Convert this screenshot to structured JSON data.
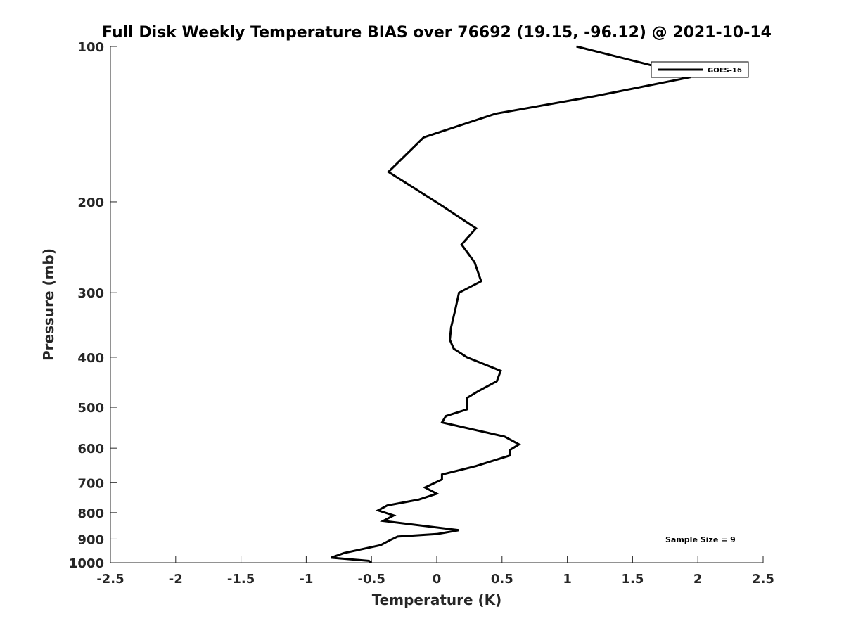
{
  "chart_data": {
    "type": "line",
    "title": "Full Disk Weekly Temperature BIAS over 76692 (19.15, -96.12) @ 2021-10-14",
    "xlabel": "Temperature (K)",
    "ylabel": "Pressure (mb)",
    "xlim": [
      -2.5,
      2.5
    ],
    "ylim": [
      1000,
      100
    ],
    "y_scale": "log",
    "y_reversed": true,
    "grid": false,
    "legend_position": "top-right",
    "x_ticks": [
      "-2.5",
      "-2",
      "-1.5",
      "-1",
      "-0.5",
      "0",
      "0.5",
      "1",
      "1.5",
      "2",
      "2.5"
    ],
    "y_ticks": [
      "100",
      "200",
      "300",
      "400",
      "500",
      "600",
      "700",
      "800",
      "900",
      "1000"
    ],
    "annotation": "Sample Size = 9",
    "series": [
      {
        "name": "GOES-16",
        "color": "#000000",
        "points": [
          [
            1.07,
            100
          ],
          [
            1.72,
            110
          ],
          [
            1.92,
            115
          ],
          [
            1.2,
            125
          ],
          [
            0.45,
            135
          ],
          [
            -0.1,
            150
          ],
          [
            -0.37,
            175
          ],
          [
            0.02,
            202
          ],
          [
            0.3,
            225
          ],
          [
            0.19,
            242
          ],
          [
            0.29,
            262
          ],
          [
            0.34,
            285
          ],
          [
            0.17,
            300
          ],
          [
            0.14,
            325
          ],
          [
            0.11,
            350
          ],
          [
            0.1,
            370
          ],
          [
            0.13,
            385
          ],
          [
            0.23,
            400
          ],
          [
            0.49,
            425
          ],
          [
            0.46,
            445
          ],
          [
            0.32,
            465
          ],
          [
            0.23,
            480
          ],
          [
            0.23,
            505
          ],
          [
            0.07,
            520
          ],
          [
            0.04,
            535
          ],
          [
            0.52,
            570
          ],
          [
            0.63,
            590
          ],
          [
            0.56,
            605
          ],
          [
            0.56,
            620
          ],
          [
            0.3,
            650
          ],
          [
            0.04,
            675
          ],
          [
            0.04,
            690
          ],
          [
            -0.09,
            715
          ],
          [
            0.0,
            735
          ],
          [
            -0.14,
            755
          ],
          [
            -0.38,
            775
          ],
          [
            -0.45,
            792
          ],
          [
            -0.33,
            810
          ],
          [
            -0.41,
            830
          ],
          [
            0.17,
            865
          ],
          [
            0.0,
            880
          ],
          [
            -0.3,
            890
          ],
          [
            -0.36,
            905
          ],
          [
            -0.43,
            925
          ],
          [
            -0.71,
            958
          ],
          [
            -0.81,
            978
          ],
          [
            -0.52,
            992
          ],
          [
            -0.5,
            1000
          ]
        ]
      }
    ]
  }
}
